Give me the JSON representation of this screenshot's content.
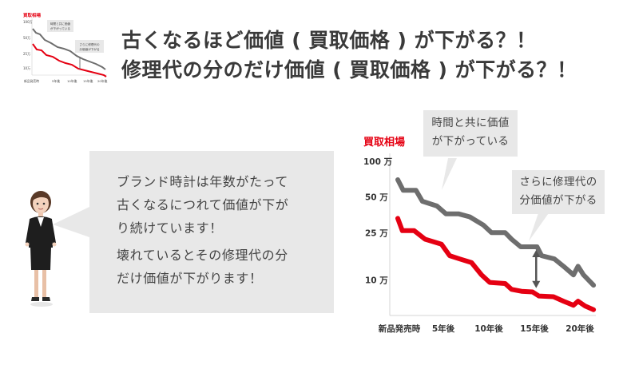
{
  "headline": {
    "line1": "古くなるほど価値 ( 買取価格 ) が下がる？！",
    "line2": "修理代の分のだけ価値 ( 買取価格 ) が下がる？！"
  },
  "bubble": {
    "lines": [
      "ブランド時計は年数がたって",
      "古くなるにつれて価値が下が",
      "り続けています！",
      "壊れているとその修理代の分",
      "だけ価値が下がります！"
    ]
  },
  "callouts": {
    "time": [
      "時間と共に価値",
      "が下がっている"
    ],
    "repair": [
      "さらに修理代の",
      "分価値が下がる"
    ]
  },
  "thumbnail": {
    "ylabel": "買取相場",
    "note1": [
      "時間と共に価値",
      "が下がっている"
    ],
    "note2": [
      "さらに修理代の",
      "分価値が下がる"
    ],
    "yticks": [
      "100万",
      "50万",
      "25万",
      "10万"
    ],
    "xticks": [
      "新品発売時",
      "5年後",
      "10年後",
      "15年後",
      "20年後"
    ]
  },
  "colors": {
    "gray_series": "#6e6e6e",
    "red_series": "#e50012",
    "callout_bg": "#e8e8e8",
    "ylabel": "#e50012"
  },
  "chart_data": {
    "type": "line",
    "ylabel": "買取相場",
    "xlabel": "",
    "x": [
      "新品発売時",
      "5年後",
      "10年後",
      "15年後",
      "20年後"
    ],
    "x_years": [
      0,
      5,
      10,
      15,
      20
    ],
    "yticks": [
      {
        "label": "100 万",
        "value": 100
      },
      {
        "label": "50 万",
        "value": 50
      },
      {
        "label": "25 万",
        "value": 25
      },
      {
        "label": "10 万",
        "value": 10
      }
    ],
    "yscale": "log",
    "ylim": [
      5,
      100
    ],
    "grid": false,
    "series": [
      {
        "color": "#6e6e6e",
        "points": [
          [
            0,
            70
          ],
          [
            0.6,
            57
          ],
          [
            2,
            57
          ],
          [
            2.7,
            46
          ],
          [
            4.3,
            42
          ],
          [
            5.3,
            36
          ],
          [
            6.7,
            36
          ],
          [
            7.9,
            34
          ],
          [
            9.4,
            29
          ],
          [
            10.3,
            25
          ],
          [
            11.8,
            25
          ],
          [
            12.5,
            22
          ],
          [
            13.5,
            19
          ],
          [
            15.3,
            19
          ],
          [
            15.8,
            16
          ],
          [
            17.2,
            15
          ],
          [
            18.2,
            13
          ],
          [
            19.3,
            11
          ],
          [
            19.8,
            13
          ],
          [
            20.4,
            11
          ],
          [
            21.5,
            9
          ]
        ]
      },
      {
        "color": "#e50012",
        "points": [
          [
            0,
            33
          ],
          [
            0.5,
            26
          ],
          [
            1.8,
            26
          ],
          [
            3,
            22
          ],
          [
            4.8,
            20
          ],
          [
            5.7,
            16
          ],
          [
            6.8,
            15
          ],
          [
            8.1,
            14
          ],
          [
            9.2,
            11
          ],
          [
            10.1,
            9.5
          ],
          [
            11.8,
            9.3
          ],
          [
            12.5,
            8.3
          ],
          [
            13.6,
            8.0
          ],
          [
            14.8,
            7.9
          ],
          [
            15.5,
            7.3
          ],
          [
            17.1,
            7.2
          ],
          [
            18.2,
            6.6
          ],
          [
            19.3,
            6.1
          ],
          [
            19.8,
            6.6
          ],
          [
            20.6,
            6.0
          ],
          [
            21.5,
            5.6
          ]
        ]
      }
    ],
    "annotations": [
      {
        "type": "double-arrow",
        "x": 15.2,
        "from": 19,
        "to": 8.0
      },
      {
        "type": "callout",
        "text": "時間と共に価値が下がっている"
      },
      {
        "type": "callout",
        "text": "さらに修理代の分価値が下がる"
      }
    ]
  }
}
